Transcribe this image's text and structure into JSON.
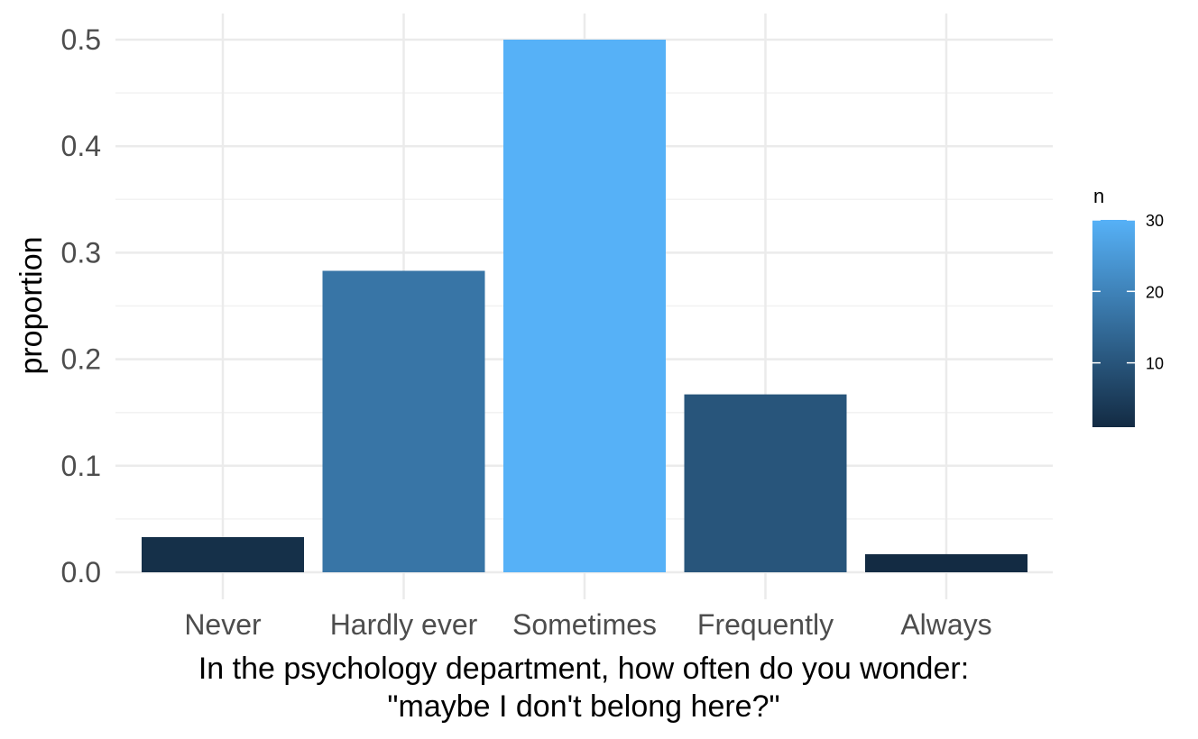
{
  "chart_data": {
    "type": "bar",
    "categories": [
      "Never",
      "Hardly ever",
      "Sometimes",
      "Frequently",
      "Always"
    ],
    "values": [
      0.033,
      0.283,
      0.5,
      0.167,
      0.017
    ],
    "n": [
      2,
      17,
      30,
      10,
      1
    ],
    "xlabel_lines": [
      "In the psychology department, how often do you wonder:",
      "\"maybe I don't belong here?\""
    ],
    "ylabel": "proportion",
    "ylim": [
      0,
      0.5
    ],
    "yticks": [
      "0.0",
      "0.1",
      "0.2",
      "0.3",
      "0.4",
      "0.5"
    ],
    "grid": true,
    "legend": {
      "title": "n",
      "position": "right",
      "type": "colorbar",
      "range": [
        1,
        30
      ],
      "ticks": [
        10,
        20,
        30
      ],
      "color_low": "#132B43",
      "color_high": "#56B1F7"
    }
  }
}
